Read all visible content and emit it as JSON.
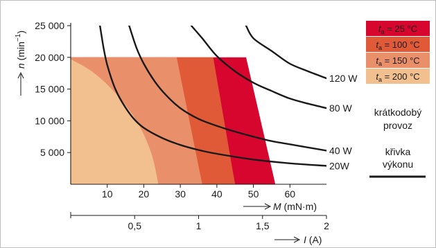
{
  "chart_data": {
    "type": "area",
    "x_label": {
      "symbol": "M",
      "unit": "(mN·m)"
    },
    "y_label": {
      "symbol": "n",
      "unit": "(min",
      "unit_sup": "−1",
      "unit_close": ")"
    },
    "second_x_label": {
      "symbol": "I",
      "unit": "(A)"
    },
    "x_range": [
      0,
      70
    ],
    "y_range": [
      0,
      25000
    ],
    "x_ticks": [
      {
        "v": 10,
        "label": "10"
      },
      {
        "v": 20,
        "label": "20"
      },
      {
        "v": 30,
        "label": "30"
      },
      {
        "v": 40,
        "label": "40"
      },
      {
        "v": 50,
        "label": "50"
      },
      {
        "v": 60,
        "label": "60"
      }
    ],
    "y_ticks": [
      {
        "v": 5000,
        "label": "5 000"
      },
      {
        "v": 10000,
        "label": "10 000"
      },
      {
        "v": 15000,
        "label": "15 000"
      },
      {
        "v": 20000,
        "label": "20 000"
      },
      {
        "v": 25000,
        "label": "25 000"
      }
    ],
    "current_range": [
      0,
      2
    ],
    "current_ticks": [
      {
        "v": 0.5,
        "label": "0,5"
      },
      {
        "v": 1,
        "label": "1"
      },
      {
        "v": 1.5,
        "label": "1,5"
      },
      {
        "v": 2,
        "label": "2"
      }
    ],
    "speed_limit": 20000,
    "thermal_regions": [
      {
        "label_sub": "a",
        "label_rest": " = 25 °C",
        "color": "#d7062f",
        "points": [
          [
            48,
            20000
          ],
          [
            56,
            0
          ]
        ]
      },
      {
        "label_sub": "a",
        "label_rest": " = 100 °C",
        "color": "#e05a38",
        "points": [
          [
            39,
            20000
          ],
          [
            45,
            0
          ]
        ]
      },
      {
        "label_sub": "a",
        "label_rest": " = 150 °C",
        "color": "#e9906a",
        "points": [
          [
            29,
            20000
          ],
          [
            36,
            0
          ]
        ]
      },
      {
        "label_sub": "a",
        "label_rest": " = 200 °C",
        "color": "#f2c08e",
        "points": [
          [
            0,
            19700
          ],
          [
            6,
            17700
          ],
          [
            12,
            14500
          ],
          [
            18,
            10000
          ],
          [
            22,
            5000
          ],
          [
            24,
            0
          ]
        ]
      }
    ],
    "legend_symbol": "t",
    "power_curves": [
      {
        "label": "120 W",
        "points": [
          [
            48,
            25000
          ],
          [
            50,
            23000
          ],
          [
            55,
            21000
          ],
          [
            60,
            19000
          ],
          [
            65,
            17800
          ],
          [
            70,
            16700
          ]
        ]
      },
      {
        "label": "80 W",
        "points": [
          [
            33,
            25000
          ],
          [
            36,
            23000
          ],
          [
            40,
            20200
          ],
          [
            45,
            17800
          ],
          [
            50,
            16000
          ],
          [
            55,
            14700
          ],
          [
            60,
            13500
          ],
          [
            65,
            12700
          ],
          [
            70,
            12000
          ]
        ]
      },
      {
        "label": "40 W",
        "points": [
          [
            16,
            25000
          ],
          [
            18,
            21500
          ],
          [
            20,
            19000
          ],
          [
            23,
            16200
          ],
          [
            26,
            14100
          ],
          [
            30,
            12000
          ],
          [
            35,
            10300
          ],
          [
            40,
            9200
          ],
          [
            45,
            8300
          ],
          [
            50,
            7500
          ],
          [
            55,
            6800
          ],
          [
            60,
            6300
          ],
          [
            65,
            5800
          ],
          [
            70,
            5300
          ]
        ]
      },
      {
        "label": "20W",
        "points": [
          [
            8,
            25000
          ],
          [
            9,
            21500
          ],
          [
            10,
            18800
          ],
          [
            12,
            15300
          ],
          [
            14,
            13000
          ],
          [
            17,
            10500
          ],
          [
            20,
            8900
          ],
          [
            25,
            7300
          ],
          [
            30,
            6200
          ],
          [
            35,
            5400
          ],
          [
            40,
            4800
          ],
          [
            50,
            3900
          ],
          [
            60,
            3300
          ],
          [
            70,
            2900
          ]
        ]
      }
    ],
    "extra_legend": {
      "short_term_line1": "krátkodobý",
      "short_term_line2": "provoz",
      "curve_line1": "křivka",
      "curve_line2": "výkonu"
    }
  }
}
